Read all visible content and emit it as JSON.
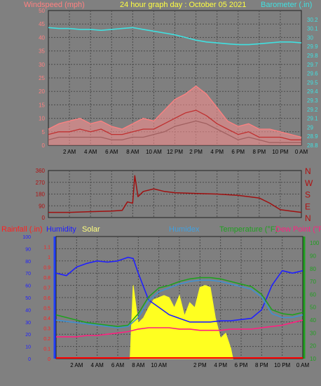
{
  "chart_data": [
    {
      "type": "line",
      "title": "24 hour graph day : October 05 2021",
      "left_axis_label": "Windspeed (mph)",
      "right_axis_label": "Barometer (.in)",
      "left_ylim": [
        0,
        50
      ],
      "left_ticks": [
        "0",
        "5",
        "10",
        "15",
        "20",
        "25",
        "30",
        "35",
        "40",
        "45",
        "50"
      ],
      "right_ylim": [
        28.8,
        30.3
      ],
      "right_ticks": [
        "28.8",
        "28.9",
        "29",
        "29.1",
        "29.2",
        "29.3",
        "29.4",
        "29.5",
        "29.6",
        "29.7",
        "29.8",
        "29.9",
        "30",
        "30.1",
        "30.2"
      ],
      "x_ticks": [
        "2 AM",
        "4 AM",
        "6 AM",
        "8 AM",
        "10 AM",
        "12 PM",
        "2 PM",
        "4 PM",
        "6 PM",
        "8 PM",
        "10 PM",
        "0 AM"
      ],
      "grid": true,
      "series": [
        {
          "name": "Barometer",
          "axis": "right",
          "color": "#40e0e0",
          "x": [
            0,
            1,
            2,
            3,
            4,
            5,
            6,
            7,
            8,
            9,
            10,
            11,
            12,
            13,
            14,
            15,
            16,
            17,
            18,
            19,
            20,
            21,
            22,
            23,
            24
          ],
          "values": [
            30.11,
            30.1,
            30.1,
            30.09,
            30.09,
            30.08,
            30.09,
            30.1,
            30.11,
            30.09,
            30.07,
            30.05,
            30.03,
            30.0,
            29.97,
            29.95,
            29.94,
            29.93,
            29.92,
            29.92,
            29.93,
            29.94,
            29.95,
            29.95,
            29.94
          ]
        },
        {
          "name": "Gust",
          "axis": "left",
          "color": "#ff8080",
          "x": [
            0,
            1,
            2,
            3,
            4,
            5,
            6,
            7,
            8,
            9,
            10,
            11,
            12,
            13,
            14,
            15,
            16,
            17,
            18,
            19,
            20,
            21,
            22,
            23,
            24
          ],
          "values": [
            6,
            8,
            9,
            10,
            8,
            9,
            7,
            6,
            8,
            10,
            9,
            13,
            17,
            19,
            22,
            19,
            14,
            9,
            7,
            8,
            6,
            6,
            5,
            4,
            3
          ]
        },
        {
          "name": "Average",
          "axis": "left",
          "color": "#c03030",
          "x": [
            0,
            1,
            2,
            3,
            4,
            5,
            6,
            7,
            8,
            9,
            10,
            11,
            12,
            13,
            14,
            15,
            16,
            17,
            18,
            19,
            20,
            21,
            22,
            23,
            24
          ],
          "values": [
            4,
            5,
            5,
            6,
            5,
            6,
            4,
            4,
            5,
            6,
            6,
            8,
            10,
            12,
            13,
            11,
            8,
            6,
            4,
            5,
            3,
            3,
            3,
            2,
            2
          ]
        },
        {
          "name": "Low",
          "axis": "left",
          "color": "#a06060",
          "x": [
            0,
            1,
            2,
            3,
            4,
            5,
            6,
            7,
            8,
            9,
            10,
            11,
            12,
            13,
            14,
            15,
            16,
            17,
            18,
            19,
            20,
            21,
            22,
            23,
            24
          ],
          "values": [
            2,
            3,
            3,
            3,
            3,
            3,
            2,
            2,
            3,
            3,
            4,
            5,
            7,
            8,
            9,
            8,
            6,
            4,
            2,
            3,
            2,
            1,
            1,
            1,
            1
          ]
        }
      ]
    },
    {
      "type": "line",
      "title": "",
      "left_ylim": [
        0,
        360
      ],
      "left_ticks": [
        "0",
        "90",
        "180",
        "270",
        "360"
      ],
      "right_labels": [
        "N",
        "W",
        "S",
        "E",
        "N"
      ],
      "grid": true,
      "series": [
        {
          "name": "Wind direction",
          "color": "#a01010",
          "x": [
            0,
            2,
            4,
            6,
            7,
            7.5,
            8,
            8.2,
            8.5,
            9,
            10,
            11,
            12,
            14,
            16,
            18,
            19,
            20,
            21,
            22,
            23,
            24
          ],
          "values": [
            40,
            40,
            45,
            50,
            55,
            120,
            110,
            320,
            160,
            200,
            220,
            200,
            190,
            185,
            180,
            170,
            160,
            150,
            110,
            60,
            50,
            40
          ]
        }
      ]
    },
    {
      "type": "line",
      "left_axis_label": "Rainfall (.in)",
      "humidity_label": "Humidity",
      "solar_label": "Solar",
      "humidex_label": "Humidex",
      "temperature_label": "Temperature (°F)",
      "dewpoint_label": "Dew Point (°F)",
      "rain_ylim": [
        0,
        1.2
      ],
      "rain_ticks": [
        "0",
        "0.1",
        "0.2",
        "0.3",
        "0.4",
        "0.5",
        "0.6",
        "0.7",
        "0.8",
        "0.9",
        "1",
        "1.1"
      ],
      "humidity_ylim": [
        0,
        100
      ],
      "humidity_ticks": [
        "0",
        "10",
        "20",
        "30",
        "40",
        "50",
        "60",
        "70",
        "80",
        "90",
        "100"
      ],
      "temp_ylim": [
        10,
        105
      ],
      "temp_ticks": [
        "10",
        "20",
        "30",
        "40",
        "50",
        "60",
        "70",
        "80",
        "90",
        "100"
      ],
      "x_ticks": [
        "2 AM",
        "4 AM",
        "6 AM",
        "8 AM",
        "10 AM",
        "2 PM",
        "4 PM",
        "6 PM",
        "8 PM",
        "10 PM",
        "0 AM"
      ],
      "grid": true,
      "series": [
        {
          "name": "Humidity",
          "axis": "humidity",
          "color": "#2020ff",
          "x": [
            0,
            1,
            2,
            3,
            4,
            5,
            6,
            7,
            7.5,
            8,
            9,
            10,
            11,
            12,
            13,
            14,
            15,
            16,
            17,
            18,
            19,
            20,
            21,
            22,
            23,
            24
          ],
          "values": [
            70,
            68,
            75,
            78,
            80,
            79,
            80,
            83,
            82,
            70,
            48,
            42,
            36,
            33,
            30,
            30,
            30,
            31,
            31,
            32,
            33,
            40,
            60,
            72,
            70,
            72
          ]
        },
        {
          "name": "Temperature",
          "axis": "temp",
          "color": "#20a020",
          "x": [
            0,
            1,
            2,
            3,
            4,
            5,
            6,
            7,
            8,
            9,
            10,
            11,
            12,
            13,
            14,
            15,
            16,
            17,
            18,
            19,
            20,
            21,
            22,
            23,
            24
          ],
          "values": [
            44,
            42,
            40,
            38,
            37,
            36,
            35,
            36,
            45,
            58,
            65,
            67,
            70,
            72,
            73,
            73,
            72,
            70,
            68,
            66,
            60,
            48,
            45,
            44,
            46
          ]
        },
        {
          "name": "Humidex",
          "axis": "temp",
          "color": "#4090d0",
          "x": [
            0,
            1,
            2,
            3,
            4,
            5,
            6,
            7,
            8,
            9,
            10,
            11,
            12,
            13,
            14,
            15,
            16,
            17,
            18,
            19,
            20,
            21,
            22,
            23,
            24
          ],
          "values": [
            40,
            39,
            38,
            37,
            36,
            35,
            34,
            35,
            42,
            55,
            62,
            65,
            68,
            70,
            71,
            71,
            70,
            68,
            66,
            64,
            58,
            45,
            42,
            42,
            44
          ]
        },
        {
          "name": "Dew Point",
          "axis": "temp",
          "color": "#ff2080",
          "x": [
            0,
            1,
            2,
            3,
            4,
            5,
            6,
            7,
            8,
            9,
            10,
            11,
            12,
            13,
            14,
            15,
            16,
            17,
            18,
            19,
            20,
            21,
            22,
            23,
            24
          ],
          "values": [
            27,
            27,
            27,
            28,
            28,
            29,
            30,
            31,
            33,
            34,
            34,
            34,
            33,
            33,
            32,
            32,
            32,
            33,
            33,
            33,
            34,
            35,
            36,
            38,
            40
          ]
        },
        {
          "name": "Solar",
          "axis": "rain",
          "color": "#ffff20",
          "x": [
            7.2,
            7.5,
            8,
            8.5,
            9,
            9.5,
            10,
            10.5,
            11,
            11.5,
            12,
            12.5,
            13,
            13.5,
            14,
            14.5,
            15,
            15.5,
            16,
            16.5,
            17,
            17.2
          ],
          "values": [
            0,
            0.72,
            0.35,
            0.4,
            0.5,
            0.58,
            0.6,
            0.62,
            0.6,
            0.5,
            0.62,
            0.42,
            0.55,
            0.5,
            0.7,
            0.72,
            0.7,
            0.4,
            0.2,
            0.25,
            0.1,
            0
          ]
        }
      ]
    }
  ]
}
